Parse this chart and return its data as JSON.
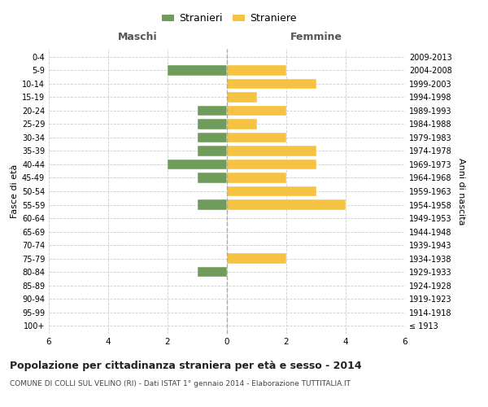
{
  "age_groups": [
    "100+",
    "95-99",
    "90-94",
    "85-89",
    "80-84",
    "75-79",
    "70-74",
    "65-69",
    "60-64",
    "55-59",
    "50-54",
    "45-49",
    "40-44",
    "35-39",
    "30-34",
    "25-29",
    "20-24",
    "15-19",
    "10-14",
    "5-9",
    "0-4"
  ],
  "birth_years": [
    "≤ 1913",
    "1914-1918",
    "1919-1923",
    "1924-1928",
    "1929-1933",
    "1934-1938",
    "1939-1943",
    "1944-1948",
    "1949-1953",
    "1954-1958",
    "1959-1963",
    "1964-1968",
    "1969-1973",
    "1974-1978",
    "1979-1983",
    "1984-1988",
    "1989-1993",
    "1994-1998",
    "1999-2003",
    "2004-2008",
    "2009-2013"
  ],
  "maschi": [
    0,
    0,
    0,
    0,
    1,
    0,
    0,
    0,
    0,
    1,
    0,
    1,
    2,
    1,
    1,
    1,
    1,
    0,
    0,
    2,
    0
  ],
  "femmine": [
    0,
    0,
    0,
    0,
    0,
    2,
    0,
    0,
    0,
    4,
    3,
    2,
    3,
    3,
    2,
    1,
    2,
    1,
    3,
    2,
    0
  ],
  "color_maschi": "#6f9c5a",
  "color_femmine": "#f5c242",
  "background_color": "#ffffff",
  "grid_color": "#cccccc",
  "title": "Popolazione per cittadinanza straniera per età e sesso - 2014",
  "subtitle": "COMUNE DI COLLI SUL VELINO (RI) - Dati ISTAT 1° gennaio 2014 - Elaborazione TUTTITALIA.IT",
  "xlabel_left": "Maschi",
  "xlabel_right": "Femmine",
  "ylabel_left": "Fasce di età",
  "ylabel_right": "Anni di nascita",
  "legend_stranieri": "Stranieri",
  "legend_straniere": "Straniere",
  "xlim": 6
}
